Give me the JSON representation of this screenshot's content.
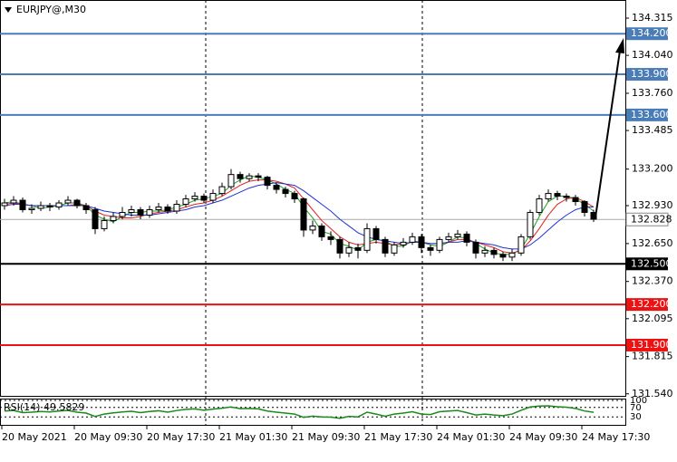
{
  "chart_data": {
    "type": "candlestick",
    "title": "EURJPY@,M30",
    "ylim": [
      131.525,
      134.449
    ],
    "yticks": [
      134.315,
      {
        "value": 134.04,
        "label": "134.040"
      },
      {
        "value": 133.76,
        "label": "133.760"
      },
      133.485,
      {
        "value": 133.2,
        "label": "133.200"
      },
      {
        "value": 132.93,
        "label": "132.930"
      },
      {
        "value": 132.65,
        "label": "132.650"
      },
      {
        "value": 132.37,
        "label": "132.370"
      },
      132.095,
      131.815,
      {
        "value": 131.54,
        "label": "131.540"
      }
    ],
    "x_labels": [
      "20 May 2021",
      "20 May 09:30",
      "20 May 17:30",
      "21 May 01:30",
      "21 May 09:30",
      "21 May 17:30",
      "24 May 01:30",
      "24 May 09:30",
      "24 May 17:30"
    ],
    "open": [
      132.93,
      132.95,
      132.97,
      132.9,
      132.91,
      132.93,
      132.92,
      132.95,
      132.97,
      132.93,
      132.9,
      132.76,
      132.82,
      132.85,
      132.88,
      132.9,
      132.86,
      132.9,
      132.92,
      132.89,
      132.94,
      132.98,
      133.0,
      132.97,
      133.02,
      133.07,
      133.16,
      133.13,
      133.15,
      133.14,
      133.08,
      133.05,
      133.02,
      132.98,
      132.75,
      132.78,
      132.7,
      132.68,
      132.58,
      132.62,
      132.6,
      132.76,
      132.68,
      132.58,
      132.64,
      132.66,
      132.7,
      132.62,
      132.6,
      132.68,
      132.7,
      132.72,
      132.66,
      132.58,
      132.6,
      132.57,
      132.55,
      132.58,
      132.7,
      132.88,
      132.98,
      133.02,
      133.0,
      132.99,
      132.96,
      132.88
    ],
    "high": [
      132.98,
      133.0,
      132.99,
      132.94,
      132.96,
      132.95,
      132.97,
      133.0,
      132.98,
      132.95,
      132.92,
      132.85,
      132.88,
      132.92,
      132.93,
      132.92,
      132.93,
      132.95,
      132.94,
      132.97,
      133.01,
      133.03,
      133.02,
      133.05,
      133.1,
      133.2,
      133.18,
      133.17,
      133.17,
      133.15,
      133.1,
      133.07,
      133.04,
      132.99,
      132.82,
      132.8,
      132.74,
      132.7,
      132.66,
      132.65,
      132.8,
      132.78,
      132.7,
      132.66,
      132.69,
      132.73,
      132.72,
      132.64,
      132.7,
      132.73,
      132.75,
      132.74,
      132.68,
      132.63,
      132.62,
      132.59,
      132.61,
      132.72,
      132.9,
      133.01,
      133.05,
      133.04,
      133.02,
      133.01,
      132.97,
      132.9
    ],
    "low": [
      132.9,
      132.93,
      132.88,
      132.87,
      132.89,
      132.89,
      132.9,
      132.93,
      132.91,
      132.87,
      132.72,
      132.74,
      132.8,
      132.83,
      132.85,
      132.83,
      132.84,
      132.88,
      132.87,
      132.87,
      132.92,
      132.96,
      132.95,
      132.95,
      133.0,
      133.05,
      133.1,
      133.11,
      133.11,
      133.05,
      133.02,
      132.99,
      132.95,
      132.7,
      132.72,
      132.67,
      132.64,
      132.54,
      132.55,
      132.54,
      132.58,
      132.65,
      132.55,
      132.56,
      132.62,
      132.64,
      132.58,
      132.56,
      132.58,
      132.66,
      132.68,
      132.63,
      132.54,
      132.55,
      132.54,
      132.52,
      132.52,
      132.56,
      132.68,
      132.86,
      132.96,
      132.97,
      132.96,
      132.93,
      132.85,
      132.81
    ],
    "close": [
      132.95,
      132.97,
      132.9,
      132.91,
      132.93,
      132.92,
      132.95,
      132.97,
      132.93,
      132.9,
      132.76,
      132.82,
      132.85,
      132.88,
      132.9,
      132.86,
      132.9,
      132.92,
      132.89,
      132.94,
      132.98,
      133.0,
      132.97,
      133.02,
      133.07,
      133.16,
      133.13,
      133.15,
      133.14,
      133.08,
      133.05,
      133.02,
      132.98,
      132.75,
      132.78,
      132.7,
      132.68,
      132.58,
      132.62,
      132.6,
      132.76,
      132.68,
      132.58,
      132.64,
      132.66,
      132.7,
      132.62,
      132.6,
      132.68,
      132.7,
      132.72,
      132.66,
      132.58,
      132.6,
      132.57,
      132.55,
      132.58,
      132.7,
      132.88,
      132.98,
      133.02,
      133.0,
      132.99,
      132.96,
      132.88,
      132.83
    ],
    "series": [
      {
        "color": "#1fa01f",
        "values": [
          132.95,
          132.96,
          132.94,
          132.93,
          132.91,
          132.92,
          132.93,
          132.95,
          132.95,
          132.93,
          132.86,
          132.83,
          132.81,
          132.85,
          132.88,
          132.88,
          132.89,
          132.89,
          132.9,
          132.92,
          132.94,
          132.97,
          132.98,
          133.0,
          133.02,
          133.08,
          133.12,
          133.15,
          133.14,
          133.12,
          133.09,
          133.05,
          133.02,
          132.92,
          132.84,
          132.74,
          132.72,
          132.65,
          132.63,
          132.6,
          132.66,
          132.68,
          132.67,
          132.63,
          132.63,
          132.67,
          132.66,
          132.64,
          132.63,
          132.66,
          132.7,
          132.69,
          132.65,
          132.61,
          132.58,
          132.57,
          132.57,
          132.61,
          132.72,
          132.85,
          132.96,
          133.0,
          133.0,
          132.98,
          132.94,
          132.89
        ]
      },
      {
        "color": "#e02020",
        "values": [
          132.94,
          132.95,
          132.94,
          132.93,
          132.93,
          132.93,
          132.93,
          132.93,
          132.94,
          132.93,
          132.89,
          132.86,
          132.85,
          132.84,
          132.84,
          132.85,
          132.87,
          132.88,
          132.89,
          132.9,
          132.92,
          132.94,
          132.95,
          132.97,
          133.0,
          133.04,
          133.08,
          133.11,
          133.12,
          133.12,
          133.11,
          133.09,
          133.06,
          132.98,
          132.9,
          132.82,
          132.76,
          132.7,
          132.66,
          132.64,
          132.65,
          132.66,
          132.65,
          132.64,
          132.65,
          132.66,
          132.66,
          132.65,
          132.65,
          132.66,
          132.68,
          132.68,
          132.66,
          132.64,
          132.62,
          132.59,
          132.58,
          132.6,
          132.67,
          132.76,
          132.86,
          132.94,
          132.98,
          132.99,
          132.96,
          132.92
        ]
      },
      {
        "color": "#2030d0",
        "values": [
          132.93,
          132.94,
          132.94,
          132.93,
          132.93,
          132.93,
          132.93,
          132.93,
          132.93,
          132.93,
          132.91,
          132.89,
          132.88,
          132.87,
          132.86,
          132.86,
          132.86,
          132.87,
          132.88,
          132.89,
          132.9,
          132.92,
          132.93,
          132.95,
          132.97,
          133.0,
          133.03,
          133.06,
          133.08,
          133.09,
          133.1,
          133.09,
          133.08,
          133.04,
          132.99,
          132.94,
          132.89,
          132.83,
          132.78,
          132.73,
          132.7,
          132.68,
          132.67,
          132.66,
          132.65,
          132.66,
          132.66,
          132.65,
          132.65,
          132.66,
          132.66,
          132.67,
          132.66,
          132.65,
          132.64,
          132.62,
          132.61,
          132.61,
          132.64,
          132.69,
          132.75,
          132.81,
          132.86,
          132.9,
          132.92,
          132.92
        ]
      }
    ],
    "levels": [
      {
        "value": 134.2,
        "label": "134.200",
        "color": "#4a7db8"
      },
      {
        "value": 133.9,
        "label": "133.900",
        "color": "#4a7db8"
      },
      {
        "value": 133.6,
        "label": "133.600",
        "color": "#4a7db8"
      },
      {
        "value": 132.5,
        "label": "132.500",
        "color": "#000000"
      },
      {
        "value": 132.2,
        "label": "132.200",
        "color": "#ee1111"
      },
      {
        "value": 131.9,
        "label": "131.900",
        "color": "#ee1111"
      }
    ],
    "current_price": {
      "value": 132.828,
      "label": "132.828"
    },
    "rsi": {
      "title": "RSI(14) 49.5829",
      "color": "#1a8a1a",
      "ylim": [
        0,
        100
      ],
      "yticks": [
        100,
        70,
        30
      ],
      "values": [
        55,
        57,
        48,
        50,
        53,
        51,
        55,
        57,
        50,
        46,
        32,
        42,
        47,
        51,
        54,
        48,
        53,
        56,
        50,
        57,
        62,
        64,
        58,
        63,
        67,
        72,
        65,
        66,
        64,
        55,
        50,
        46,
        42,
        28,
        33,
        30,
        29,
        24,
        32,
        30,
        50,
        42,
        33,
        42,
        46,
        52,
        42,
        40,
        52,
        55,
        57,
        48,
        38,
        42,
        38,
        35,
        42,
        58,
        72,
        76,
        77,
        73,
        71,
        66,
        55,
        49.5829
      ]
    }
  }
}
